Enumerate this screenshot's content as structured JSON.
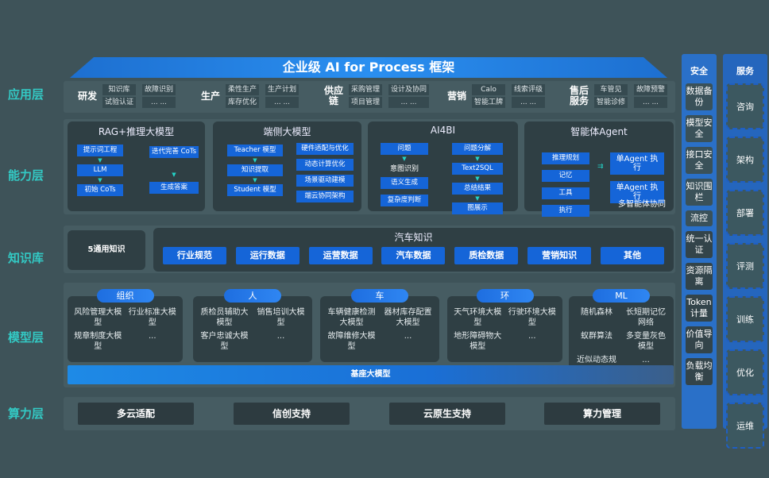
{
  "title": "企业级 AI for Process 框架",
  "layers": {
    "app": "应用层",
    "ability": "能力层",
    "knowledge": "知识库",
    "model": "模型层",
    "compute": "算力层"
  },
  "app_groups": [
    {
      "name": "研发",
      "cells": [
        "知识库",
        "故障识别",
        "试验认证",
        "... ..."
      ]
    },
    {
      "name": "生产",
      "cells": [
        "柔性生产",
        "生产计划",
        "库存优化",
        "... ..."
      ]
    },
    {
      "name": "供应链",
      "cells": [
        "采购管理",
        "设计及协同",
        "项目管理",
        "... ..."
      ]
    },
    {
      "name": "营销",
      "cells": [
        "Calo",
        "线索评级",
        "智能工牌",
        "... ..."
      ]
    },
    {
      "name": "售后服务",
      "cells": [
        "车管见",
        "故障预警",
        "智能诊修",
        "... ..."
      ]
    }
  ],
  "ability": {
    "rag": {
      "title": "RAG+推理大模型",
      "left": [
        "提示词工程",
        "LLM",
        "初始 CoTs"
      ],
      "right": [
        "迭代完善 CoTs",
        "生成答案"
      ]
    },
    "edge": {
      "title": "端侧大模型",
      "left": [
        "Teacher 模型",
        "知识提取",
        "Student 模型"
      ],
      "right": [
        "硬件适配与优化",
        "动态计算优化",
        "场景驱动建模",
        "端云协同架构"
      ]
    },
    "ai4bi": {
      "title": "AI4BI",
      "q": "问题",
      "intent": "意图识别",
      "left": [
        "语义生成",
        "复杂度判断"
      ],
      "right": [
        "问题分解",
        "Text2SQL",
        "总结结果",
        "图展示"
      ]
    },
    "agent": {
      "title": "智能体Agent",
      "left": [
        "推理规划",
        "记忆",
        "工具",
        "执行"
      ],
      "right": [
        "单Agent 执行",
        "单Agent 执行"
      ],
      "footer": "多智能体协同"
    }
  },
  "knowledge": {
    "general": "5通用知识",
    "auto_title": "汽车知识",
    "items": [
      "行业规范",
      "运行数据",
      "运营数据",
      "汽车数据",
      "质检数据",
      "营销知识",
      "其他"
    ]
  },
  "models": [
    {
      "name": "组织",
      "items": [
        "风险管理大模型",
        "行业标准大模型",
        "规章制度大模型",
        "..."
      ]
    },
    {
      "name": "人",
      "items": [
        "质检员辅助大模型",
        "销售培训大模型",
        "客户忠诚大模型",
        "..."
      ]
    },
    {
      "name": "车",
      "items": [
        "车辆健康检测大模型",
        "器材库存配置大模型",
        "故障维修大模型",
        "..."
      ]
    },
    {
      "name": "环",
      "items": [
        "天气环境大模型",
        "行驶环境大模型",
        "地形障碍物大模型",
        "..."
      ]
    },
    {
      "name": "ML",
      "items": [
        "随机森林",
        "长短期记忆网络",
        "蚁群算法",
        "多变量灰色模型",
        "近似动态规划",
        "..."
      ]
    }
  ],
  "base_model": "基座大模型",
  "compute": [
    "多云适配",
    "信创支持",
    "云原生支持",
    "算力管理"
  ],
  "security": {
    "title": "安全",
    "items": [
      "数据备份",
      "模型安全",
      "接口安全",
      "知识围栏",
      "流控",
      "统一认证",
      "资源隔离",
      "Token计量",
      "价值导向",
      "负载均衡"
    ]
  },
  "service": {
    "title": "服务",
    "items": [
      "咨询",
      "架构",
      "部署",
      "评测",
      "训练",
      "优化",
      "运维"
    ]
  },
  "colors": {
    "background": "#3e5359",
    "accent": "#1565d8",
    "label": "#33c9c4"
  }
}
